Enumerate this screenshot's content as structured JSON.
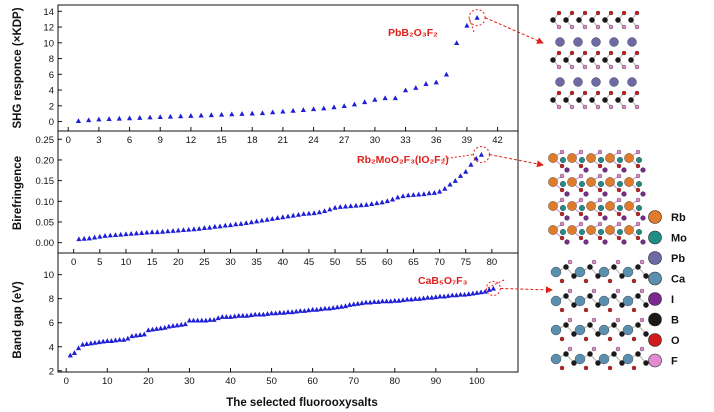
{
  "figure": {
    "xlabel": "The selected  fluorooxysalts"
  },
  "chart_data": [
    {
      "type": "scatter",
      "panel": "shg",
      "title": "",
      "xlabel": "",
      "ylabel": "SHG responce (×KDP)",
      "xlim": [
        -1,
        44
      ],
      "ylim": [
        -1.2,
        14.8
      ],
      "xticks": [
        0,
        3,
        6,
        9,
        12,
        15,
        18,
        21,
        24,
        27,
        30,
        33,
        36,
        39,
        42
      ],
      "yticks": [
        0,
        2,
        4,
        6,
        8,
        10,
        12,
        14
      ],
      "color": "#1f1fd6",
      "x": [
        1,
        2,
        3,
        4,
        5,
        6,
        7,
        8,
        9,
        10,
        11,
        12,
        13,
        14,
        15,
        16,
        17,
        18,
        19,
        20,
        21,
        22,
        23,
        24,
        25,
        26,
        27,
        28,
        29,
        30,
        31,
        32,
        33,
        34,
        35,
        36,
        37,
        38,
        39,
        40
      ],
      "y": [
        0.1,
        0.2,
        0.3,
        0.35,
        0.4,
        0.45,
        0.5,
        0.55,
        0.6,
        0.65,
        0.7,
        0.75,
        0.8,
        0.85,
        0.9,
        0.95,
        1.0,
        1.05,
        1.1,
        1.2,
        1.3,
        1.4,
        1.5,
        1.6,
        1.7,
        1.85,
        2.0,
        2.2,
        2.5,
        2.8,
        3.0,
        3.0,
        4.0,
        4.3,
        4.8,
        5.0,
        6.0,
        10.0,
        12.2,
        13.2
      ],
      "annotation": {
        "text": "PbB₂O₃F₂",
        "x": 40,
        "y": 13.2
      }
    },
    {
      "type": "scatter",
      "panel": "birefringence",
      "title": "",
      "xlabel": "",
      "ylabel": "Birefringence",
      "xlim": [
        -3,
        85
      ],
      "ylim": [
        -0.025,
        0.27
      ],
      "xticks": [
        0,
        5,
        10,
        15,
        20,
        25,
        30,
        35,
        40,
        45,
        50,
        55,
        60,
        65,
        70,
        75,
        80
      ],
      "yticks": [
        0.0,
        0.05,
        0.1,
        0.15,
        0.2,
        0.25
      ],
      "ytick_labels": [
        "0.00",
        "0.05",
        "0.10",
        "0.15",
        "0.20",
        "0.25"
      ],
      "color": "#1f1fd6",
      "x": [
        1,
        2,
        3,
        4,
        5,
        6,
        7,
        8,
        9,
        10,
        11,
        12,
        13,
        14,
        15,
        16,
        17,
        18,
        19,
        20,
        21,
        22,
        23,
        24,
        25,
        26,
        27,
        28,
        29,
        30,
        31,
        32,
        33,
        34,
        35,
        36,
        37,
        38,
        39,
        40,
        41,
        42,
        43,
        44,
        45,
        46,
        47,
        48,
        49,
        50,
        51,
        52,
        53,
        54,
        55,
        56,
        57,
        58,
        59,
        60,
        61,
        62,
        63,
        64,
        65,
        66,
        67,
        68,
        69,
        70,
        71,
        72,
        73,
        74,
        75,
        76,
        77,
        78
      ],
      "y": [
        0.009,
        0.01,
        0.011,
        0.013,
        0.015,
        0.017,
        0.018,
        0.019,
        0.02,
        0.021,
        0.022,
        0.023,
        0.024,
        0.025,
        0.026,
        0.026,
        0.027,
        0.028,
        0.029,
        0.03,
        0.031,
        0.032,
        0.033,
        0.034,
        0.036,
        0.037,
        0.039,
        0.04,
        0.042,
        0.043,
        0.045,
        0.046,
        0.048,
        0.05,
        0.052,
        0.054,
        0.056,
        0.058,
        0.06,
        0.062,
        0.064,
        0.066,
        0.068,
        0.07,
        0.071,
        0.072,
        0.074,
        0.077,
        0.081,
        0.085,
        0.087,
        0.088,
        0.089,
        0.09,
        0.091,
        0.092,
        0.094,
        0.096,
        0.098,
        0.101,
        0.105,
        0.11,
        0.113,
        0.115,
        0.116,
        0.117,
        0.118,
        0.12,
        0.121,
        0.124,
        0.131,
        0.141,
        0.15,
        0.162,
        0.172,
        0.189,
        0.204,
        0.213
      ],
      "annotation": {
        "text": "Rb₂MoO₂F₃(IO₂F₂)",
        "x": 78,
        "y": 0.213
      }
    },
    {
      "type": "scatter",
      "panel": "bandgap",
      "title": "",
      "xlabel": "The selected  fluorooxysalts",
      "ylabel": "Band gap (eV)",
      "xlim": [
        -2,
        110
      ],
      "ylim": [
        1.9,
        11.8
      ],
      "xticks": [
        0,
        10,
        20,
        30,
        40,
        50,
        60,
        70,
        80,
        90,
        100
      ],
      "yticks": [
        2,
        4,
        6,
        8,
        10
      ],
      "color": "#1f1fd6",
      "x": [
        1,
        2,
        3,
        4,
        5,
        6,
        7,
        8,
        9,
        10,
        11,
        12,
        13,
        14,
        15,
        16,
        17,
        18,
        19,
        20,
        21,
        22,
        23,
        24,
        25,
        26,
        27,
        28,
        29,
        30,
        31,
        32,
        33,
        34,
        35,
        36,
        37,
        38,
        39,
        40,
        41,
        42,
        43,
        44,
        45,
        46,
        47,
        48,
        49,
        50,
        51,
        52,
        53,
        54,
        55,
        56,
        57,
        58,
        59,
        60,
        61,
        62,
        63,
        64,
        65,
        66,
        67,
        68,
        69,
        70,
        71,
        72,
        73,
        74,
        75,
        76,
        77,
        78,
        79,
        80,
        81,
        82,
        83,
        84,
        85,
        86,
        87,
        88,
        89,
        90,
        91,
        92,
        93,
        94,
        95,
        96,
        97,
        98,
        99,
        100,
        101,
        102,
        103,
        104
      ],
      "y": [
        3.3,
        3.5,
        3.9,
        4.2,
        4.25,
        4.3,
        4.35,
        4.4,
        4.45,
        4.5,
        4.5,
        4.55,
        4.6,
        4.6,
        4.7,
        4.9,
        4.95,
        5.0,
        5.05,
        5.4,
        5.45,
        5.5,
        5.55,
        5.6,
        5.7,
        5.75,
        5.8,
        5.85,
        5.9,
        6.2,
        6.2,
        6.2,
        6.2,
        6.2,
        6.25,
        6.25,
        6.4,
        6.5,
        6.5,
        6.5,
        6.55,
        6.6,
        6.6,
        6.6,
        6.65,
        6.7,
        6.7,
        6.7,
        6.75,
        6.8,
        6.8,
        6.85,
        6.85,
        6.9,
        6.9,
        6.95,
        7.0,
        7.0,
        7.05,
        7.1,
        7.1,
        7.15,
        7.2,
        7.2,
        7.25,
        7.3,
        7.35,
        7.4,
        7.5,
        7.55,
        7.6,
        7.65,
        7.7,
        7.7,
        7.75,
        7.75,
        7.8,
        7.8,
        7.8,
        7.85,
        7.85,
        7.9,
        7.95,
        7.95,
        8.0,
        8.0,
        8.05,
        8.1,
        8.1,
        8.15,
        8.2,
        8.2,
        8.25,
        8.3,
        8.3,
        8.35,
        8.35,
        8.4,
        8.45,
        8.5,
        8.55,
        8.6,
        8.75,
        8.85
      ],
      "annotation": {
        "text": "CaB₅O₇F₃",
        "x": 104,
        "y": 8.85
      }
    }
  ],
  "legend": [
    {
      "label": "Rb",
      "color": "#e07b2c"
    },
    {
      "label": "Mo",
      "color": "#1f8f86"
    },
    {
      "label": "Pb",
      "color": "#6e6aa6"
    },
    {
      "label": "Ca",
      "color": "#5b8fae"
    },
    {
      "label": "I",
      "color": "#7a2a8e"
    },
    {
      "label": "B",
      "color": "#1a1a1a"
    },
    {
      "label": "O",
      "color": "#d11a1a"
    },
    {
      "label": "F",
      "color": "#e58ad0"
    }
  ],
  "colors": {
    "marker": "#1f1fd6",
    "annotation": "#e0201b"
  }
}
